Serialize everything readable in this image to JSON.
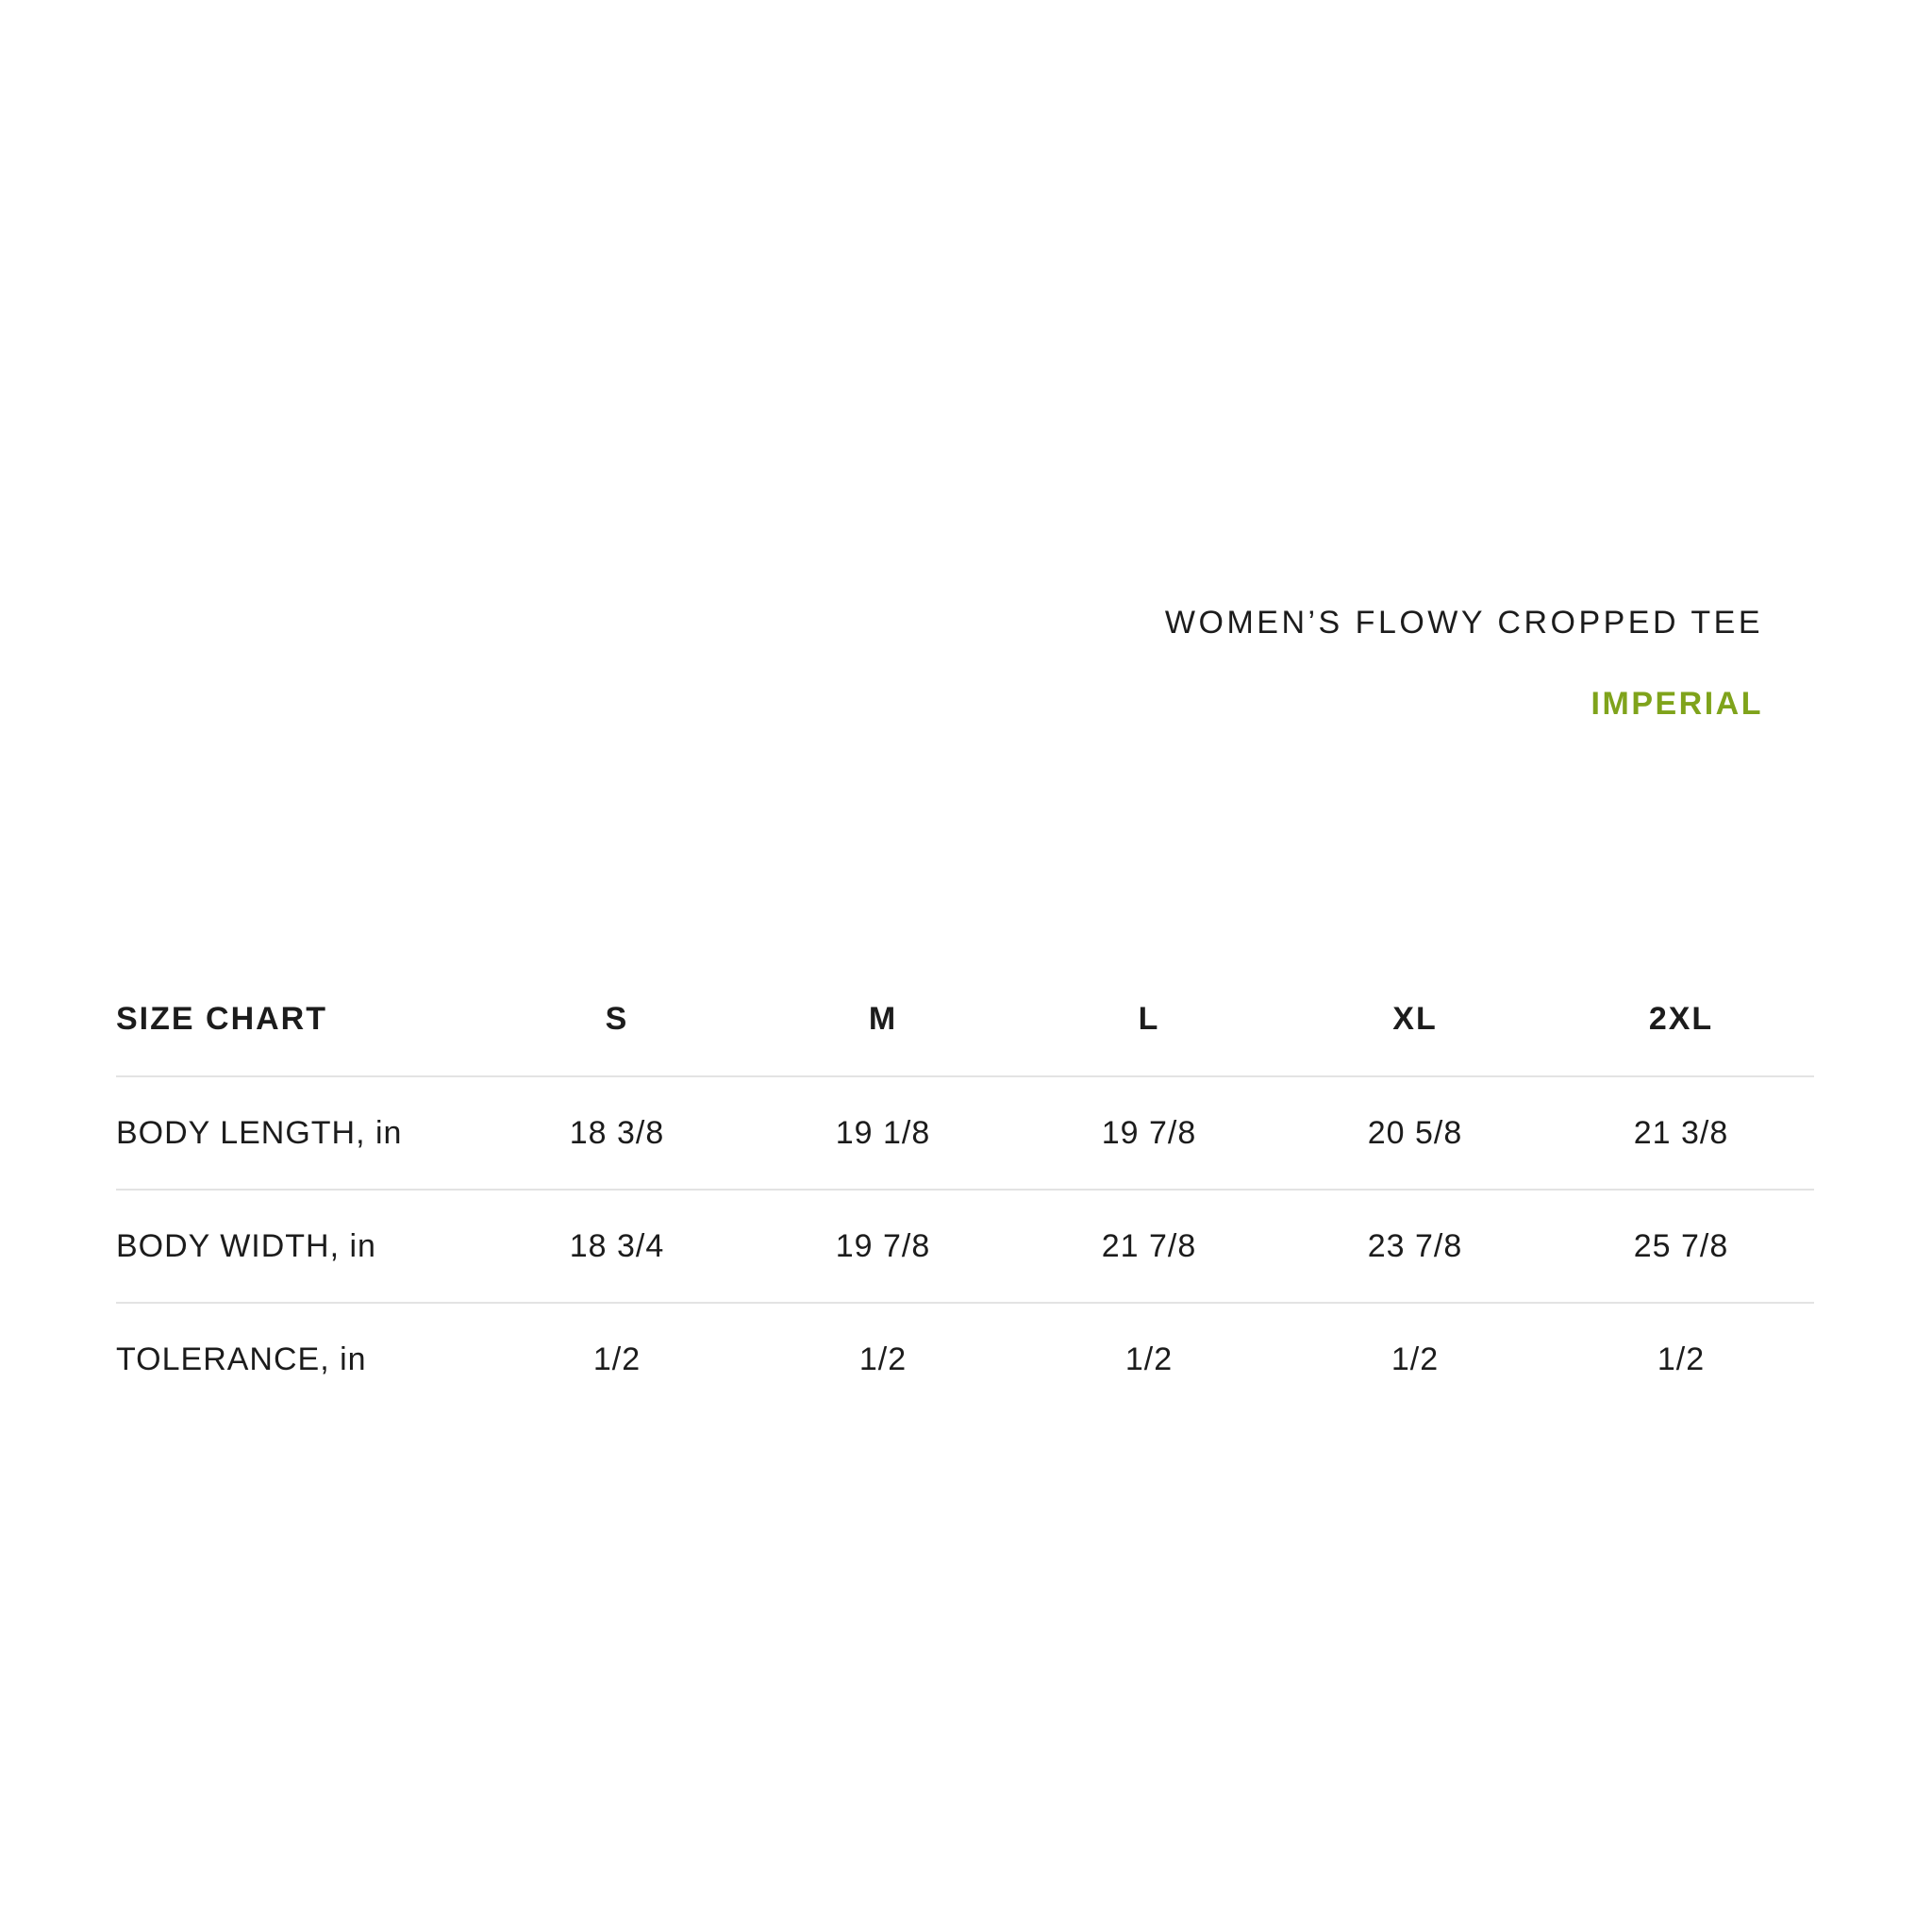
{
  "page": {
    "background_color": "#ffffff",
    "text_color": "#1c1c1c",
    "divider_color": "#e3e3e3"
  },
  "header": {
    "product_title": "WOMEN’S FLOWY CROPPED TEE",
    "unit_system_label": "IMPERIAL",
    "accent_color": "#7FA31B"
  },
  "size_chart": {
    "corner_label": "SIZE CHART",
    "columns": [
      "S",
      "M",
      "L",
      "XL",
      "2XL"
    ],
    "rows": [
      {
        "label": "BODY LENGTH, in",
        "values": [
          "18 3/8",
          "19 1/8",
          "19 7/8",
          "20 5/8",
          "21 3/8"
        ]
      },
      {
        "label": "BODY WIDTH, in",
        "values": [
          "18 3/4",
          "19 7/8",
          "21 7/8",
          "23 7/8",
          "25 7/8"
        ]
      },
      {
        "label": "TOLERANCE, in",
        "values": [
          "1/2",
          "1/2",
          "1/2",
          "1/2",
          "1/2"
        ]
      }
    ]
  }
}
